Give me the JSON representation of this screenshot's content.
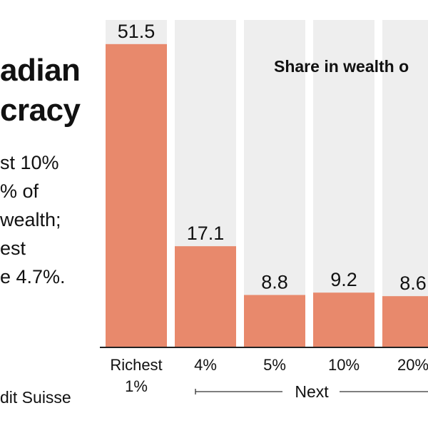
{
  "headline": {
    "line1": "adian",
    "line2": "cracy"
  },
  "summary": {
    "lines": [
      "st 10%",
      "% of",
      "wealth;",
      "est",
      "e 4.7%."
    ]
  },
  "source": "dit Suisse",
  "chart_data": {
    "type": "bar",
    "title": "Share in wealth o",
    "categories": [
      "Richest 1%",
      "4%",
      "5%",
      "10%",
      "20%"
    ],
    "category_lines": [
      [
        "Richest",
        "1%"
      ],
      [
        "4%"
      ],
      [
        "5%"
      ],
      [
        "10%"
      ],
      [
        "20%"
      ]
    ],
    "values": [
      51.5,
      17.1,
      8.8,
      9.2,
      8.6
    ],
    "value_labels": [
      "51.5",
      "17.1",
      "8.8",
      "9.2",
      "8.6"
    ],
    "group_label": "Next",
    "xlabel": "",
    "ylabel": "",
    "ylim": [
      0,
      55
    ],
    "grid": false,
    "bar_color": "#e8896c",
    "column_bg_color": "#eeeeee"
  }
}
